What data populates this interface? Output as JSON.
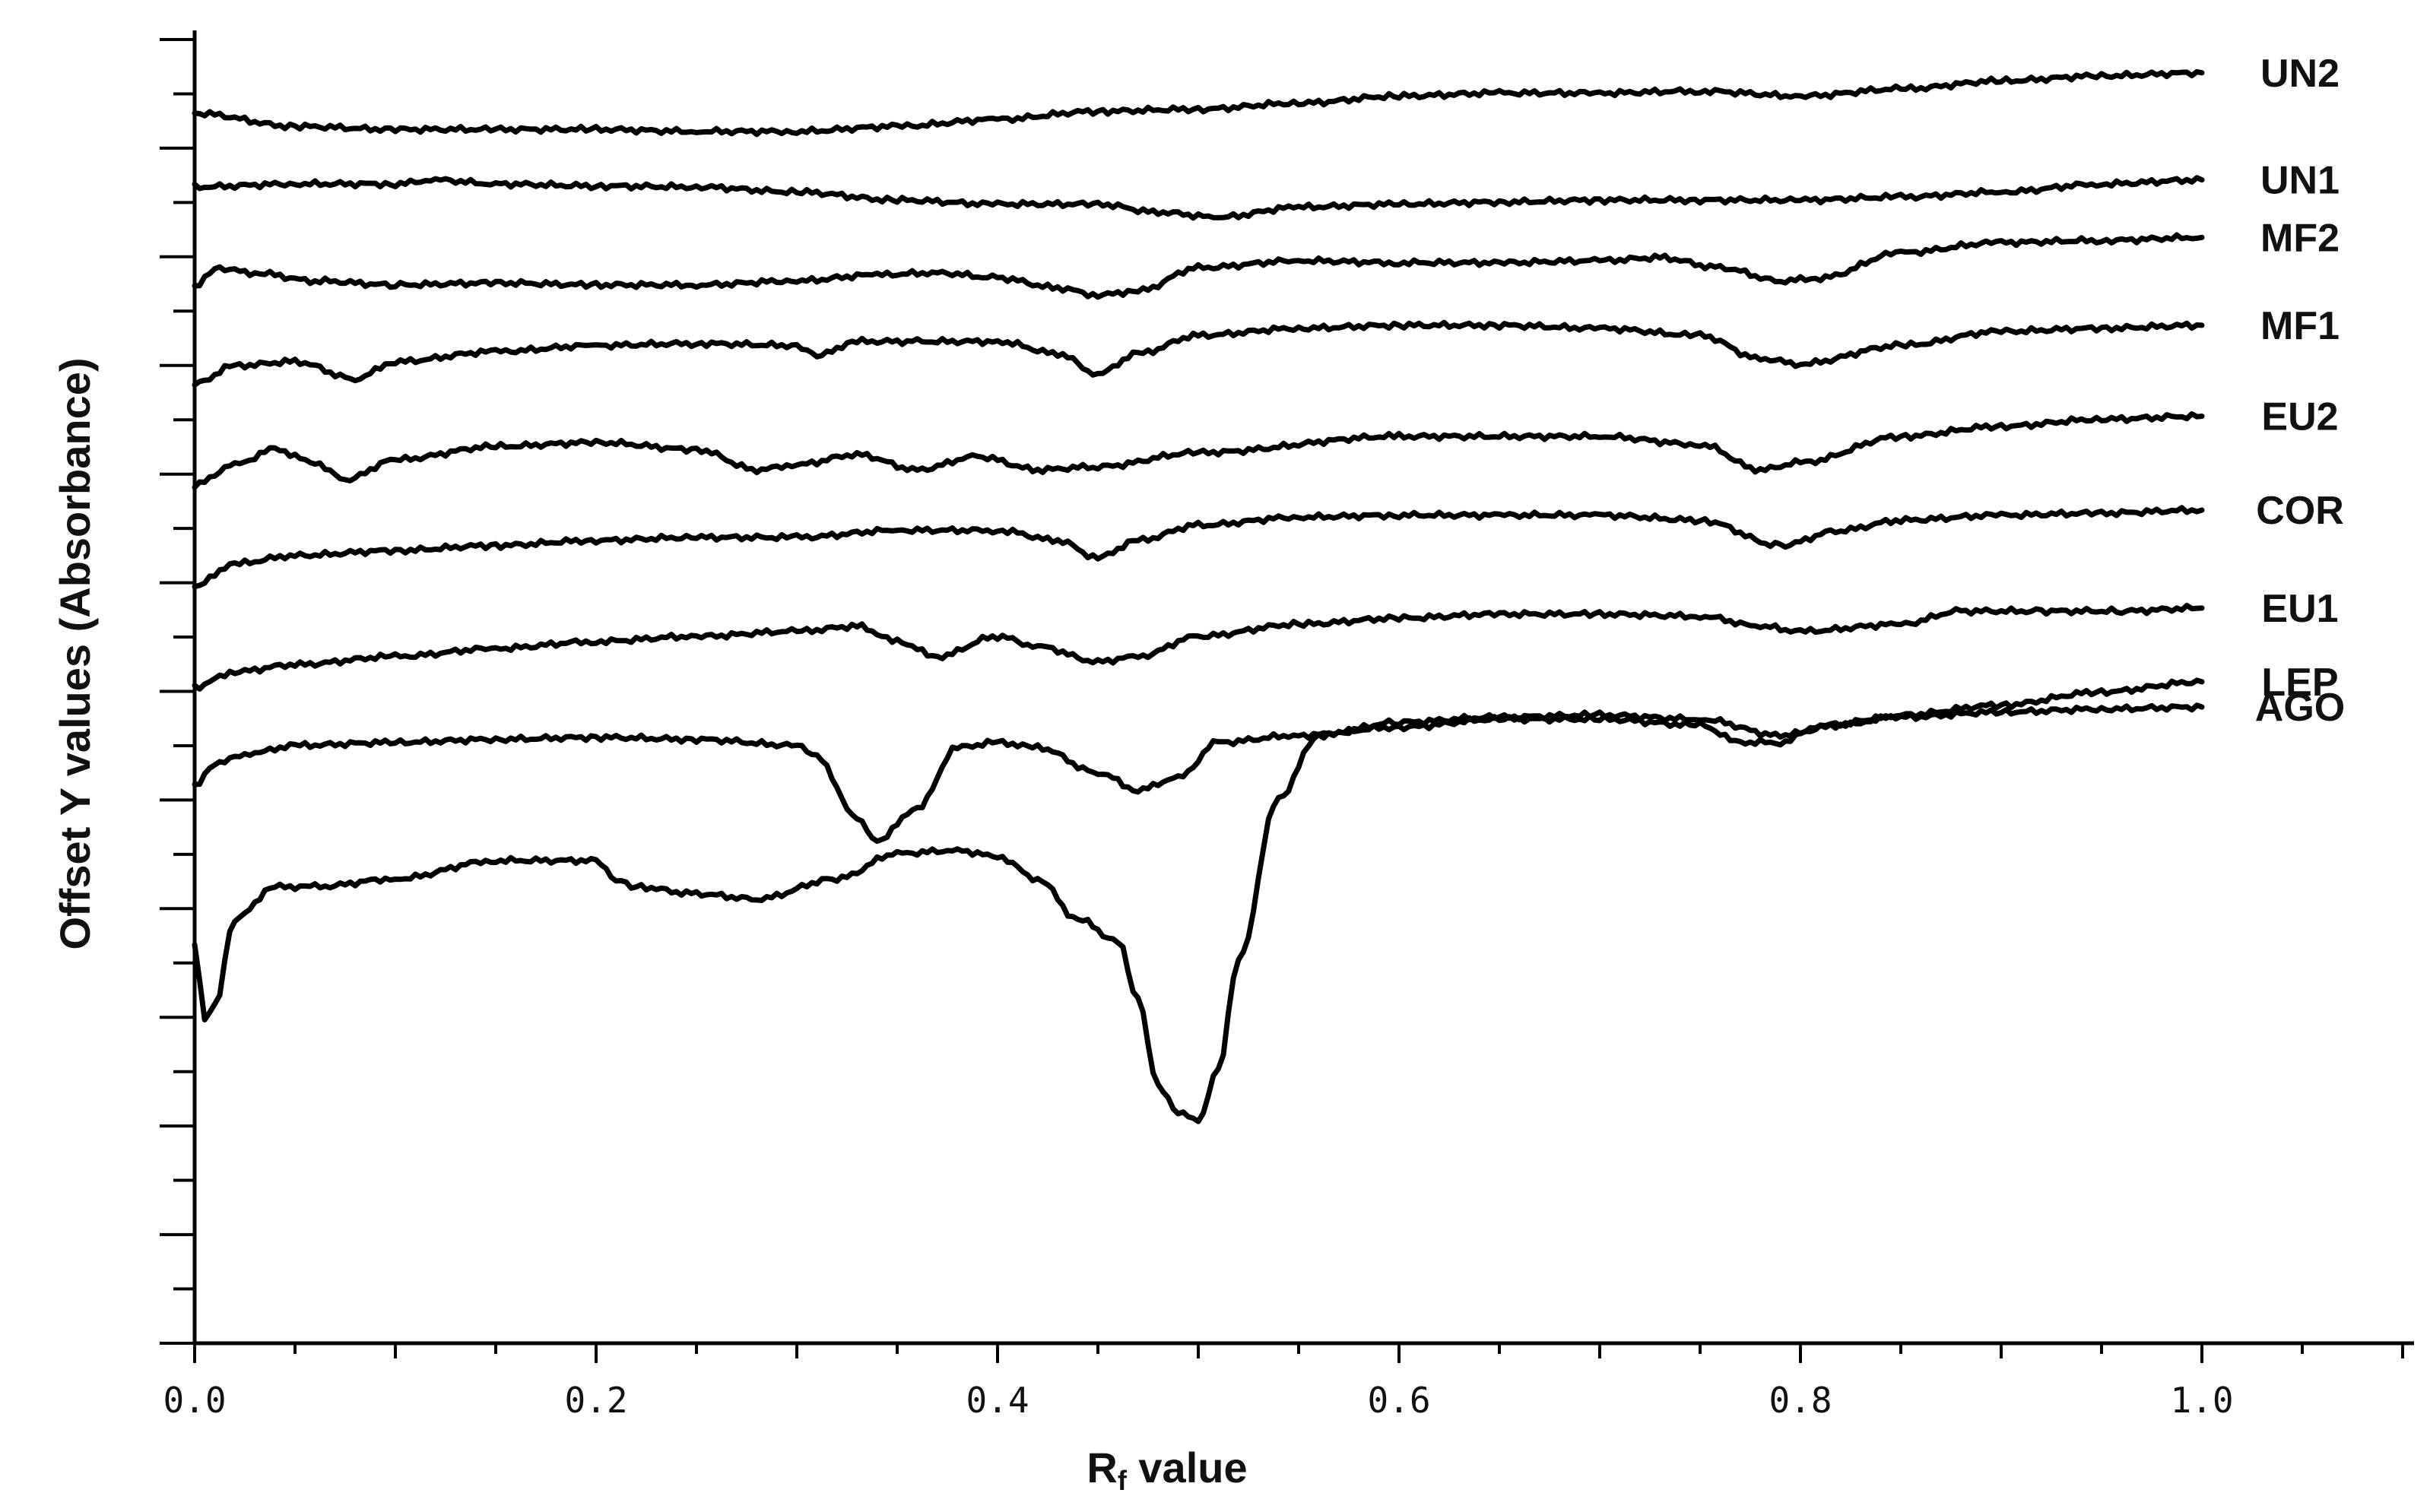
{
  "chart_data": {
    "type": "line",
    "title": "",
    "xlabel_main": "R",
    "xlabel_sub": "f",
    "xlabel_rest": " value",
    "ylabel": "Offset Y values (Absorbance)",
    "xlim": [
      0.0,
      1.1
    ],
    "ylim": [
      -1.6,
      11.4
    ],
    "x_ticks": [
      "0.0",
      "0.2",
      "0.4",
      "0.6",
      "0.8",
      "1.0"
    ],
    "x_tick_values": [
      0.0,
      0.2,
      0.4,
      0.6,
      0.8,
      1.0
    ],
    "grid": false,
    "y_tick_labels_shown": false,
    "series": [
      {
        "name": "UN2",
        "x": [
          0.0,
          0.05,
          0.1,
          0.15,
          0.2,
          0.25,
          0.3,
          0.35,
          0.4,
          0.45,
          0.5,
          0.55,
          0.6,
          0.65,
          0.7,
          0.75,
          0.8,
          0.85,
          0.9,
          0.95,
          1.0
        ],
        "y": [
          10.58,
          10.45,
          10.42,
          10.42,
          10.42,
          10.4,
          10.4,
          10.45,
          10.52,
          10.6,
          10.62,
          10.68,
          10.75,
          10.78,
          10.78,
          10.8,
          10.75,
          10.82,
          10.9,
          10.95,
          10.98
        ]
      },
      {
        "name": "UN1",
        "x": [
          0.0,
          0.05,
          0.1,
          0.12,
          0.15,
          0.2,
          0.25,
          0.3,
          0.35,
          0.4,
          0.45,
          0.48,
          0.51,
          0.55,
          0.6,
          0.65,
          0.7,
          0.75,
          0.8,
          0.85,
          0.9,
          0.95,
          1.0
        ],
        "y": [
          9.85,
          9.88,
          9.88,
          9.92,
          9.88,
          9.86,
          9.85,
          9.8,
          9.72,
          9.68,
          9.68,
          9.6,
          9.55,
          9.65,
          9.68,
          9.7,
          9.72,
          9.72,
          9.72,
          9.75,
          9.8,
          9.88,
          9.92
        ]
      },
      {
        "name": "MF2",
        "x": [
          0.0,
          0.01,
          0.03,
          0.06,
          0.1,
          0.15,
          0.2,
          0.25,
          0.3,
          0.34,
          0.37,
          0.4,
          0.43,
          0.45,
          0.47,
          0.5,
          0.55,
          0.6,
          0.65,
          0.7,
          0.73,
          0.76,
          0.79,
          0.81,
          0.85,
          0.9,
          0.95,
          1.0
        ],
        "y": [
          8.85,
          9.05,
          9.0,
          8.92,
          8.88,
          8.9,
          8.88,
          8.88,
          8.92,
          8.98,
          9.0,
          8.95,
          8.85,
          8.78,
          8.82,
          9.05,
          9.12,
          9.1,
          9.1,
          9.12,
          9.15,
          9.05,
          8.92,
          8.95,
          9.2,
          9.3,
          9.32,
          9.35
        ]
      },
      {
        "name": "MF1",
        "x": [
          0.0,
          0.02,
          0.05,
          0.08,
          0.1,
          0.15,
          0.2,
          0.25,
          0.3,
          0.31,
          0.33,
          0.36,
          0.4,
          0.43,
          0.45,
          0.47,
          0.5,
          0.55,
          0.6,
          0.65,
          0.7,
          0.75,
          0.78,
          0.8,
          0.85,
          0.9,
          0.95,
          1.0
        ],
        "y": [
          7.9,
          8.08,
          8.12,
          7.95,
          8.12,
          8.22,
          8.28,
          8.3,
          8.28,
          8.18,
          8.32,
          8.32,
          8.32,
          8.2,
          8.0,
          8.2,
          8.38,
          8.45,
          8.48,
          8.48,
          8.45,
          8.38,
          8.15,
          8.1,
          8.28,
          8.42,
          8.45,
          8.48
        ]
      },
      {
        "name": "EU2",
        "x": [
          0.0,
          0.02,
          0.04,
          0.06,
          0.075,
          0.1,
          0.15,
          0.2,
          0.25,
          0.28,
          0.3,
          0.33,
          0.36,
          0.39,
          0.42,
          0.45,
          0.5,
          0.6,
          0.7,
          0.75,
          0.78,
          0.8,
          0.85,
          0.9,
          0.95,
          1.0
        ],
        "y": [
          6.9,
          7.1,
          7.25,
          7.12,
          6.95,
          7.15,
          7.28,
          7.32,
          7.25,
          7.05,
          7.1,
          7.2,
          7.05,
          7.18,
          7.05,
          7.08,
          7.22,
          7.38,
          7.38,
          7.3,
          7.05,
          7.12,
          7.38,
          7.48,
          7.55,
          7.58
        ]
      },
      {
        "name": "COR",
        "x": [
          0.0,
          0.02,
          0.05,
          0.1,
          0.15,
          0.2,
          0.25,
          0.3,
          0.35,
          0.4,
          0.43,
          0.45,
          0.47,
          0.5,
          0.55,
          0.6,
          0.65,
          0.7,
          0.75,
          0.79,
          0.82,
          0.85,
          0.9,
          0.95,
          1.0
        ],
        "y": [
          5.9,
          6.12,
          6.2,
          6.25,
          6.3,
          6.35,
          6.38,
          6.38,
          6.45,
          6.45,
          6.35,
          6.18,
          6.35,
          6.5,
          6.58,
          6.6,
          6.6,
          6.6,
          6.55,
          6.3,
          6.45,
          6.55,
          6.6,
          6.62,
          6.65
        ]
      },
      {
        "name": "EU1",
        "x": [
          0.0,
          0.02,
          0.05,
          0.1,
          0.15,
          0.2,
          0.25,
          0.3,
          0.33,
          0.35,
          0.37,
          0.4,
          0.42,
          0.45,
          0.47,
          0.5,
          0.55,
          0.6,
          0.65,
          0.7,
          0.75,
          0.78,
          0.8,
          0.85,
          0.88,
          0.92,
          0.96,
          1.0
        ],
        "y": [
          4.9,
          5.05,
          5.12,
          5.2,
          5.28,
          5.35,
          5.4,
          5.45,
          5.5,
          5.35,
          5.2,
          5.4,
          5.3,
          5.15,
          5.2,
          5.4,
          5.52,
          5.58,
          5.62,
          5.62,
          5.6,
          5.5,
          5.45,
          5.52,
          5.65,
          5.65,
          5.65,
          5.68
        ]
      },
      {
        "name": "AGO",
        "x": [
          0.0,
          0.01,
          0.03,
          0.05,
          0.1,
          0.15,
          0.2,
          0.25,
          0.3,
          0.31,
          0.33,
          0.34,
          0.36,
          0.38,
          0.4,
          0.42,
          0.45,
          0.47,
          0.49,
          0.51,
          0.55,
          0.6,
          0.65,
          0.7,
          0.75,
          0.77,
          0.79,
          0.81,
          0.85,
          0.9,
          0.95,
          1.0
        ],
        "y": [
          3.92,
          4.15,
          4.25,
          4.32,
          4.35,
          4.38,
          4.4,
          4.38,
          4.32,
          4.2,
          3.6,
          3.38,
          3.7,
          4.3,
          4.35,
          4.3,
          4.05,
          3.88,
          4.0,
          4.35,
          4.42,
          4.5,
          4.58,
          4.58,
          4.52,
          4.35,
          4.35,
          4.52,
          4.6,
          4.65,
          4.68,
          4.7
        ]
      },
      {
        "name": "LEP",
        "x": [
          0.0,
          0.005,
          0.01,
          0.02,
          0.04,
          0.06,
          0.1,
          0.15,
          0.2,
          0.21,
          0.22,
          0.25,
          0.28,
          0.32,
          0.35,
          0.38,
          0.4,
          0.42,
          0.44,
          0.46,
          0.47,
          0.48,
          0.49,
          0.5,
          0.51,
          0.52,
          0.54,
          0.56,
          0.6,
          0.65,
          0.7,
          0.75,
          0.79,
          0.82,
          0.85,
          0.9,
          0.95,
          1.0
        ],
        "y": [
          2.35,
          1.6,
          1.75,
          2.6,
          2.92,
          2.92,
          3.0,
          3.18,
          3.18,
          2.98,
          2.92,
          2.85,
          2.8,
          3.0,
          3.25,
          3.28,
          3.22,
          3.0,
          2.6,
          2.38,
          1.8,
          0.95,
          0.7,
          0.6,
          1.1,
          2.2,
          3.8,
          4.42,
          4.55,
          4.6,
          4.62,
          4.58,
          4.42,
          4.52,
          4.62,
          4.72,
          4.85,
          4.95
        ]
      }
    ],
    "labels": [
      "UN2",
      "UN1",
      "MF2",
      "MF1",
      "EU2",
      "COR",
      "EU1",
      "AGO",
      "LEP"
    ]
  }
}
